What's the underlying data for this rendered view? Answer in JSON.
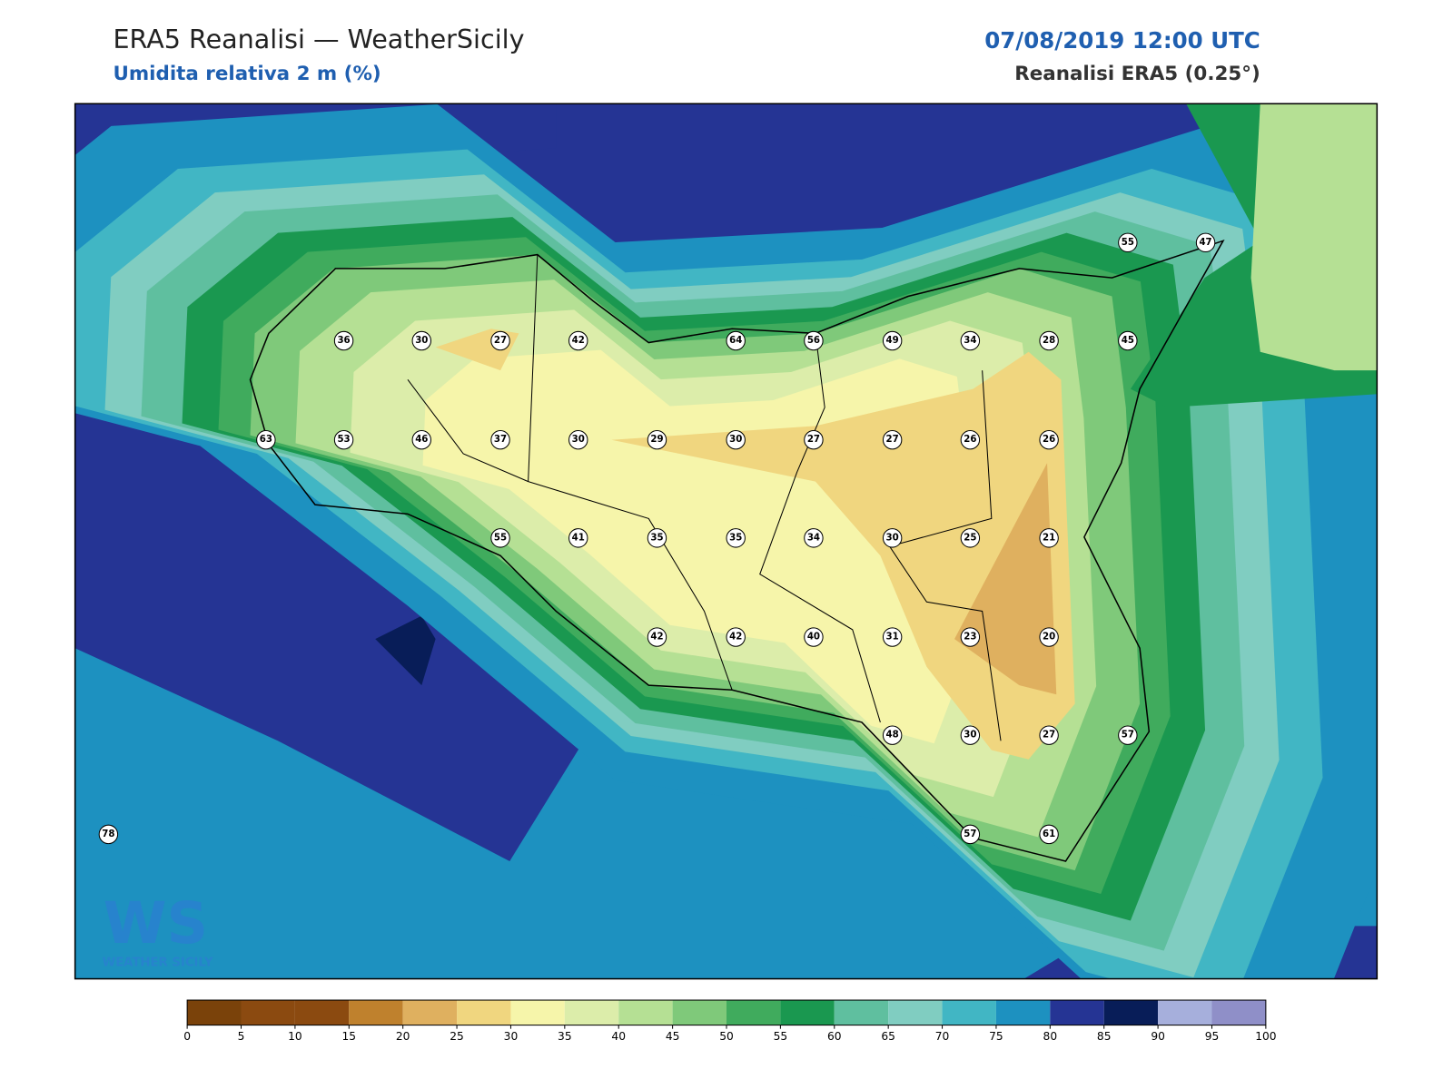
{
  "header": {
    "title": "ERA5 Reanalisi — WeatherSicily",
    "subtitle": "Umidita relativa 2 m (%)",
    "datetime": "07/08/2019 12:00 UTC",
    "source": "Reanalisi ERA5 (0.25°)"
  },
  "logo": {
    "mark": "WS",
    "text": "WEATHER SICILY"
  },
  "stations": [
    55,
    47,
    36,
    30,
    27,
    42,
    64,
    56,
    49,
    34,
    28,
    45,
    63,
    53,
    46,
    37,
    30,
    29,
    30,
    27,
    27,
    26,
    26,
    55,
    41,
    35,
    35,
    34,
    30,
    25,
    21,
    42,
    42,
    40,
    31,
    23,
    20,
    48,
    30,
    27,
    57,
    78,
    57,
    61
  ],
  "colorbar": {
    "ticks": [
      0,
      5,
      10,
      15,
      20,
      25,
      30,
      35,
      40,
      45,
      50,
      55,
      60,
      65,
      70,
      75,
      80,
      85,
      90,
      95,
      100
    ],
    "colors": [
      "#7a420a",
      "#8b4a10",
      "#8b4a10",
      "#bf812d",
      "#dfb05f",
      "#f0d67f",
      "#f6f5aa",
      "#dcedaa",
      "#b5e094",
      "#7fc97a",
      "#40ab5d",
      "#1a9850",
      "#5fbf9f",
      "#80cdc1",
      "#41b6c4",
      "#1d91c0",
      "#253494",
      "#081d58",
      "#a6afdc",
      "#8f8fc8"
    ]
  }
}
